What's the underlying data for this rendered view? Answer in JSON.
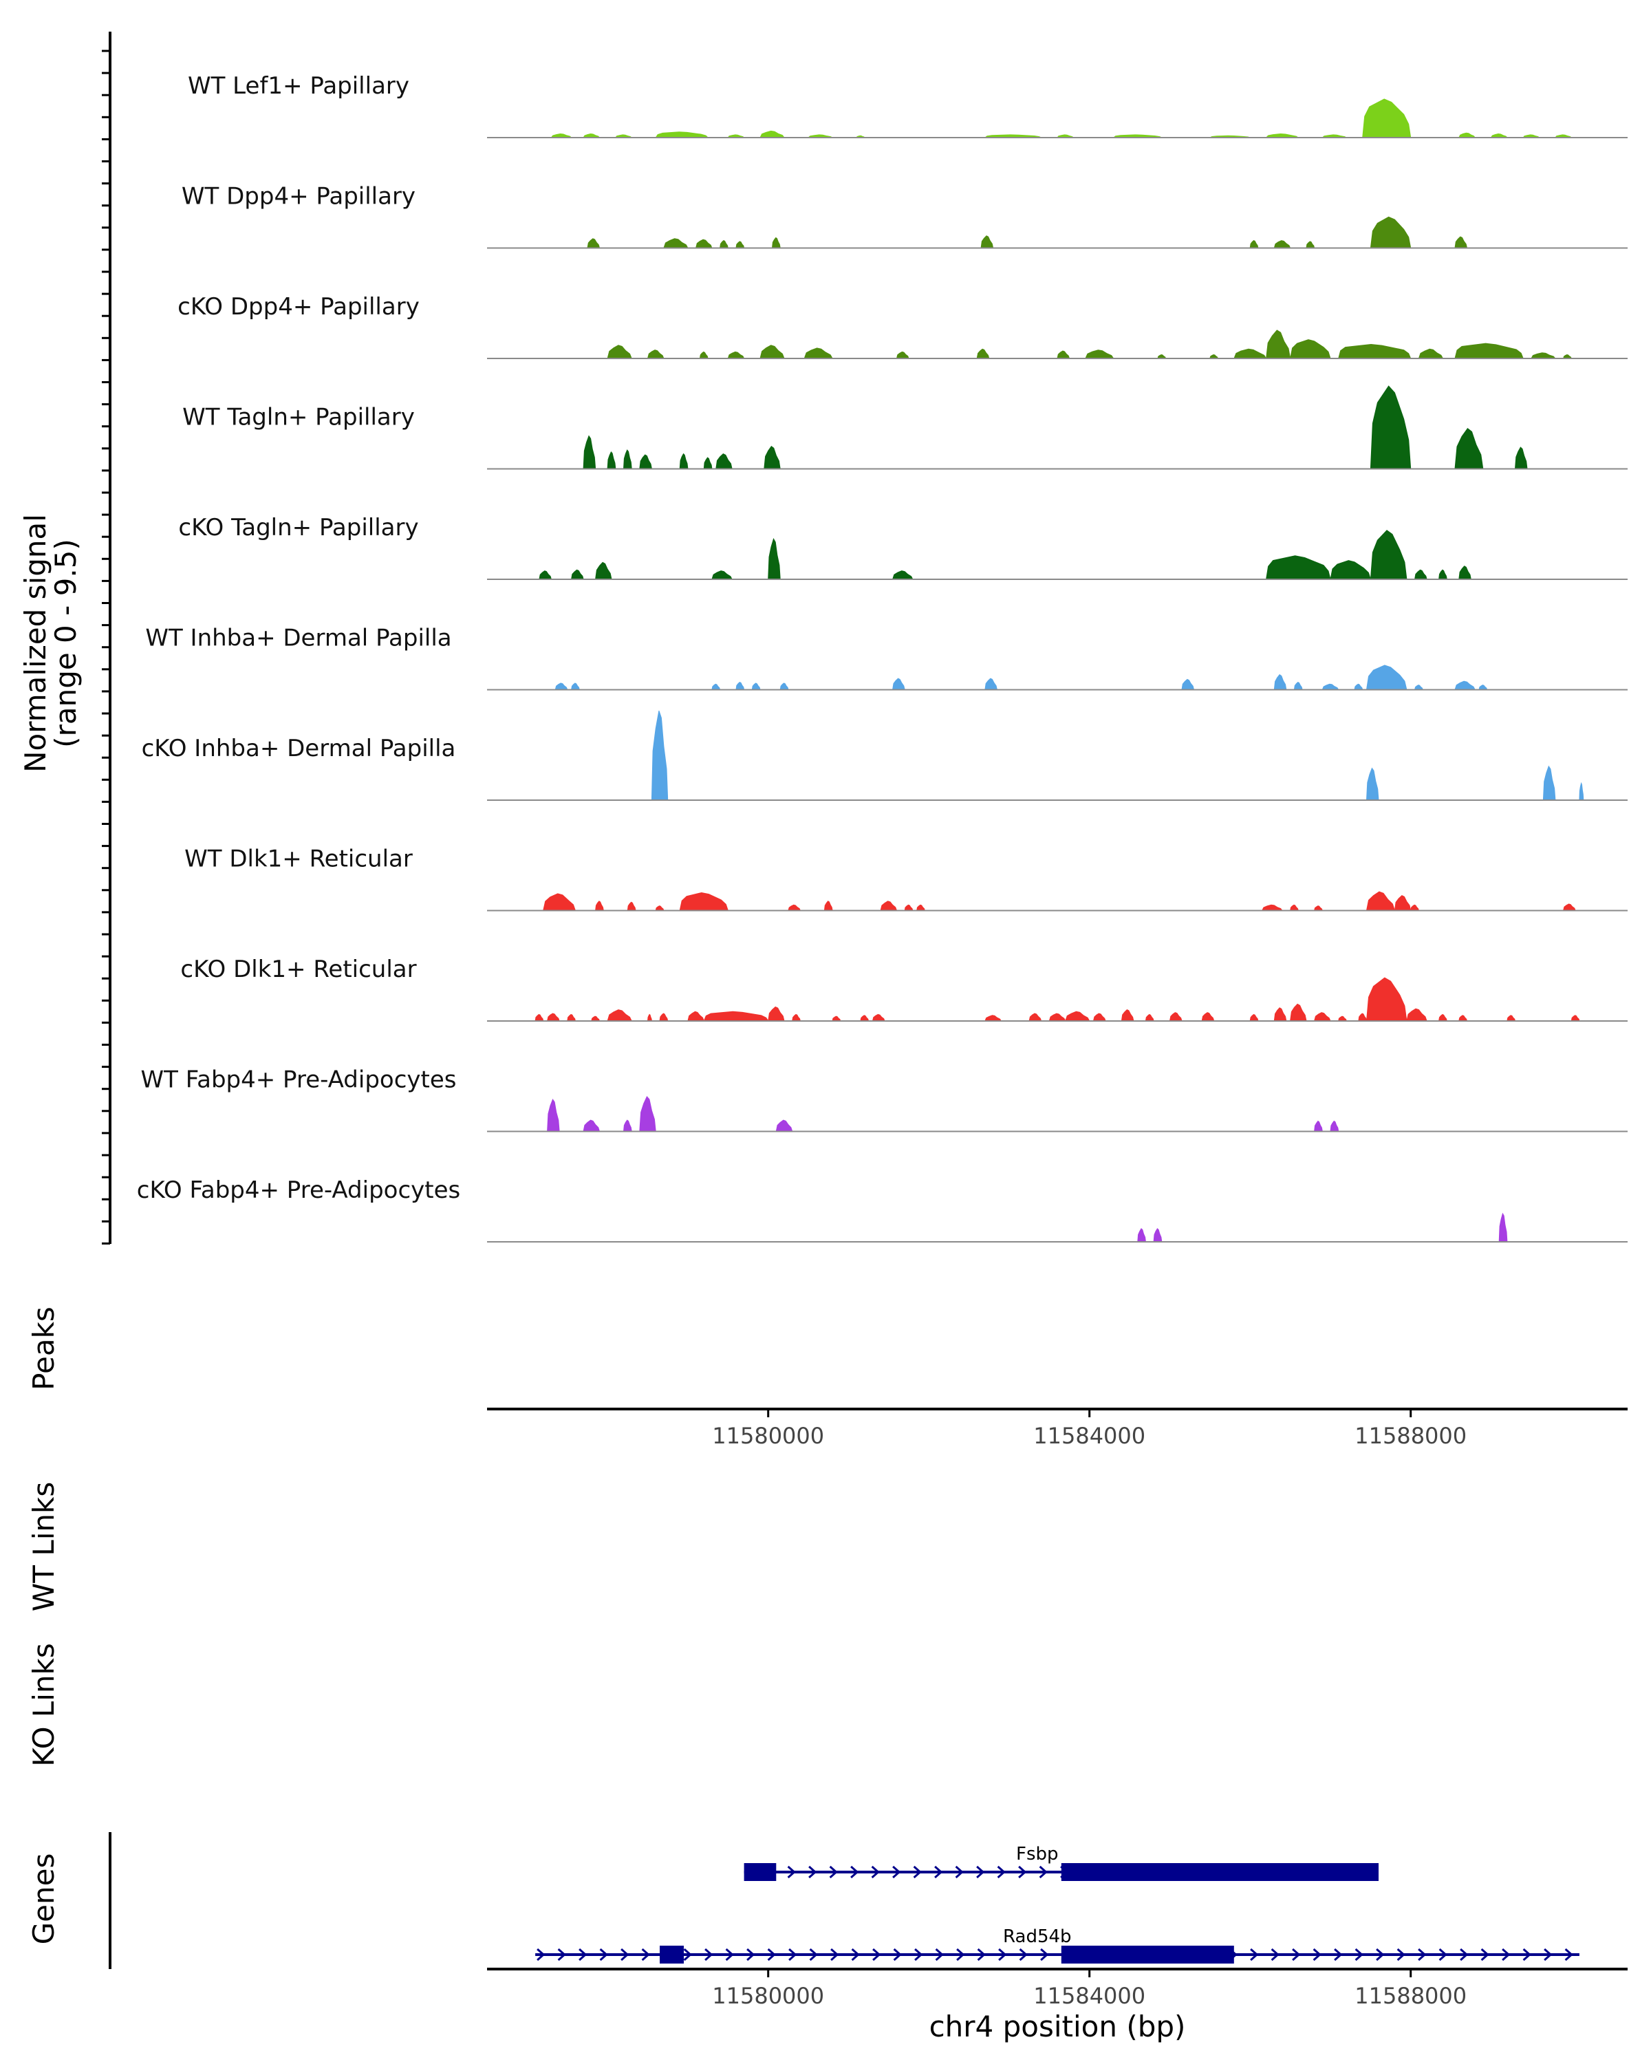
{
  "chart_data": {
    "type": "area",
    "title": "",
    "xlabel": "chr4 position (bp)",
    "ylabel_line1": "Normalized signal",
    "ylabel_line2": "(range 0 - 9.5)",
    "signal_range": [
      0,
      9.5
    ],
    "x_range": [
      11576500,
      11590700
    ],
    "x_ticks": [
      11580000,
      11584000,
      11588000
    ],
    "x_tick_labels": [
      "11580000",
      "11584000",
      "11588000"
    ],
    "panel_labels": {
      "peaks": "Peaks",
      "wt_links": "WT Links",
      "ko_links": "KO Links",
      "genes": "Genes"
    },
    "series": [
      {
        "name": "WT Lef1+ Papillary",
        "color": "#7CD11A",
        "regions": [
          [
            11577300,
            11577550,
            0.4
          ],
          [
            11577700,
            11577900,
            0.4
          ],
          [
            11578100,
            11578300,
            0.3
          ],
          [
            11578600,
            11579250,
            0.6
          ],
          [
            11579500,
            11579700,
            0.3
          ],
          [
            11579900,
            11580200,
            0.7
          ],
          [
            11580500,
            11580800,
            0.3
          ],
          [
            11581100,
            11581200,
            0.2
          ],
          [
            11582700,
            11583400,
            0.3
          ],
          [
            11583600,
            11583800,
            0.3
          ],
          [
            11584300,
            11584900,
            0.3
          ],
          [
            11585500,
            11586000,
            0.2
          ],
          [
            11586200,
            11586600,
            0.4
          ],
          [
            11586900,
            11587200,
            0.3
          ],
          [
            11587400,
            11588000,
            4.1
          ],
          [
            11588600,
            11588800,
            0.5
          ],
          [
            11589000,
            11589200,
            0.4
          ],
          [
            11589400,
            11589600,
            0.3
          ],
          [
            11589800,
            11590000,
            0.3
          ]
        ]
      },
      {
        "name": "WT Dpp4+ Papillary",
        "color": "#4E8B0E",
        "regions": [
          [
            11577750,
            11577900,
            1.0
          ],
          [
            11578700,
            11579000,
            1.0
          ],
          [
            11579100,
            11579300,
            0.9
          ],
          [
            11579400,
            11579500,
            0.8
          ],
          [
            11579600,
            11579700,
            0.7
          ],
          [
            11580050,
            11580150,
            1.1
          ],
          [
            11582650,
            11582800,
            1.3
          ],
          [
            11586000,
            11586100,
            0.8
          ],
          [
            11586300,
            11586500,
            0.8
          ],
          [
            11586700,
            11586800,
            0.7
          ],
          [
            11587500,
            11588000,
            3.3
          ],
          [
            11588550,
            11588700,
            1.2
          ]
        ]
      },
      {
        "name": "cKO Dpp4+ Papillary",
        "color": "#4E8B0E",
        "regions": [
          [
            11578000,
            11578300,
            1.4
          ],
          [
            11578500,
            11578700,
            0.9
          ],
          [
            11579150,
            11579250,
            0.7
          ],
          [
            11579500,
            11579700,
            0.7
          ],
          [
            11579900,
            11580200,
            1.4
          ],
          [
            11580450,
            11580800,
            1.1
          ],
          [
            11581600,
            11581750,
            0.7
          ],
          [
            11582600,
            11582750,
            1.0
          ],
          [
            11583600,
            11583750,
            0.8
          ],
          [
            11583950,
            11584300,
            0.9
          ],
          [
            11584850,
            11584950,
            0.4
          ],
          [
            11585500,
            11585600,
            0.4
          ],
          [
            11585800,
            11586200,
            1.0
          ],
          [
            11586200,
            11586500,
            3.0
          ],
          [
            11586500,
            11587000,
            2.0
          ],
          [
            11587100,
            11588000,
            1.5
          ],
          [
            11588100,
            11588400,
            1.0
          ],
          [
            11588550,
            11589400,
            1.6
          ],
          [
            11589500,
            11589800,
            0.6
          ],
          [
            11589900,
            11590000,
            0.4
          ]
        ]
      },
      {
        "name": "WT Tagln+ Papillary",
        "color": "#0A6410",
        "regions": [
          [
            11577700,
            11577850,
            3.5
          ],
          [
            11578000,
            11578100,
            1.8
          ],
          [
            11578200,
            11578300,
            2.0
          ],
          [
            11578400,
            11578550,
            1.5
          ],
          [
            11578900,
            11579000,
            1.6
          ],
          [
            11579200,
            11579300,
            1.2
          ],
          [
            11579350,
            11579550,
            1.6
          ],
          [
            11579950,
            11580150,
            2.4
          ],
          [
            11587500,
            11588000,
            8.8
          ],
          [
            11588550,
            11588900,
            4.3
          ],
          [
            11589300,
            11589450,
            2.3
          ]
        ]
      },
      {
        "name": "cKO Tagln+ Papillary",
        "color": "#0A6410",
        "regions": [
          [
            11577150,
            11577300,
            0.9
          ],
          [
            11577550,
            11577700,
            1.0
          ],
          [
            11577850,
            11578050,
            1.8
          ],
          [
            11579300,
            11579550,
            0.9
          ],
          [
            11580000,
            11580150,
            4.3
          ],
          [
            11581550,
            11581800,
            0.9
          ],
          [
            11586200,
            11587000,
            2.5
          ],
          [
            11587000,
            11587500,
            2.0
          ],
          [
            11587500,
            11587950,
            5.2
          ],
          [
            11588050,
            11588200,
            1.0
          ],
          [
            11588350,
            11588450,
            1.0
          ],
          [
            11588600,
            11588750,
            1.4
          ]
        ]
      },
      {
        "name": "WT Inhba+ Dermal Papilla",
        "color": "#56A5E6",
        "regions": [
          [
            11577350,
            11577500,
            0.7
          ],
          [
            11577550,
            11577650,
            0.7
          ],
          [
            11579300,
            11579400,
            0.6
          ],
          [
            11579600,
            11579700,
            0.8
          ],
          [
            11579800,
            11579900,
            0.7
          ],
          [
            11580150,
            11580250,
            0.7
          ],
          [
            11581550,
            11581700,
            1.2
          ],
          [
            11582700,
            11582850,
            1.2
          ],
          [
            11585150,
            11585300,
            1.1
          ],
          [
            11586300,
            11586450,
            1.6
          ],
          [
            11586550,
            11586650,
            0.8
          ],
          [
            11586900,
            11587100,
            0.6
          ],
          [
            11587300,
            11587400,
            0.6
          ],
          [
            11587450,
            11587950,
            2.6
          ],
          [
            11588050,
            11588150,
            0.5
          ],
          [
            11588550,
            11588800,
            0.9
          ],
          [
            11588850,
            11588950,
            0.5
          ]
        ]
      },
      {
        "name": "cKO Inhba+ Dermal Papilla",
        "color": "#56A5E6",
        "regions": [
          [
            11578550,
            11578750,
            9.5
          ],
          [
            11587450,
            11587600,
            3.4
          ],
          [
            11589650,
            11589800,
            3.6
          ],
          [
            11590100,
            11590150,
            1.8
          ]
        ]
      },
      {
        "name": "WT Dlk1+ Reticular",
        "color": "#F0302C",
        "regions": [
          [
            11577200,
            11577600,
            1.8
          ],
          [
            11577850,
            11577950,
            1.0
          ],
          [
            11578250,
            11578350,
            0.9
          ],
          [
            11578600,
            11578700,
            0.5
          ],
          [
            11578900,
            11579500,
            1.9
          ],
          [
            11580250,
            11580400,
            0.6
          ],
          [
            11580700,
            11580800,
            1.0
          ],
          [
            11581400,
            11581600,
            1.0
          ],
          [
            11581700,
            11581800,
            0.6
          ],
          [
            11581850,
            11581950,
            0.6
          ],
          [
            11586150,
            11586400,
            0.6
          ],
          [
            11586500,
            11586600,
            0.6
          ],
          [
            11586800,
            11586900,
            0.5
          ],
          [
            11587450,
            11587800,
            2.0
          ],
          [
            11587800,
            11588000,
            1.6
          ],
          [
            11588000,
            11588100,
            0.6
          ],
          [
            11589900,
            11590050,
            0.7
          ]
        ]
      },
      {
        "name": "cKO Dlk1+ Reticular",
        "color": "#F0302C",
        "regions": [
          [
            11577100,
            11577200,
            0.7
          ],
          [
            11577250,
            11577400,
            0.8
          ],
          [
            11577500,
            11577600,
            0.7
          ],
          [
            11577800,
            11577900,
            0.5
          ],
          [
            11578000,
            11578300,
            1.2
          ],
          [
            11578500,
            11578550,
            0.7
          ],
          [
            11578650,
            11578750,
            0.8
          ],
          [
            11579000,
            11579200,
            1.0
          ],
          [
            11579200,
            11580000,
            1.0
          ],
          [
            11580000,
            11580200,
            1.5
          ],
          [
            11580300,
            11580400,
            0.7
          ],
          [
            11580800,
            11580900,
            0.5
          ],
          [
            11581150,
            11581250,
            0.6
          ],
          [
            11581300,
            11581450,
            0.7
          ],
          [
            11582700,
            11582900,
            0.6
          ],
          [
            11583250,
            11583400,
            0.8
          ],
          [
            11583500,
            11583700,
            0.8
          ],
          [
            11583700,
            11584000,
            1.0
          ],
          [
            11584050,
            11584200,
            0.8
          ],
          [
            11584400,
            11584550,
            1.2
          ],
          [
            11584700,
            11584800,
            0.7
          ],
          [
            11585000,
            11585150,
            0.9
          ],
          [
            11585400,
            11585550,
            0.9
          ],
          [
            11586000,
            11586100,
            0.7
          ],
          [
            11586300,
            11586450,
            1.4
          ],
          [
            11586500,
            11586700,
            1.8
          ],
          [
            11586800,
            11587000,
            0.9
          ],
          [
            11587100,
            11587200,
            0.5
          ],
          [
            11587350,
            11587450,
            0.8
          ],
          [
            11587450,
            11587950,
            4.6
          ],
          [
            11587950,
            11588200,
            1.3
          ],
          [
            11588350,
            11588450,
            0.7
          ],
          [
            11588600,
            11588700,
            0.6
          ],
          [
            11589200,
            11589300,
            0.6
          ],
          [
            11590000,
            11590100,
            0.6
          ]
        ]
      },
      {
        "name": "WT Fabp4+ Pre-Adipocytes",
        "color": "#A73EE2",
        "regions": [
          [
            11577250,
            11577400,
            3.4
          ],
          [
            11577700,
            11577900,
            1.2
          ],
          [
            11578200,
            11578300,
            1.2
          ],
          [
            11578400,
            11578600,
            3.7
          ],
          [
            11580100,
            11580300,
            1.2
          ],
          [
            11586800,
            11586900,
            1.1
          ],
          [
            11587000,
            11587100,
            1.1
          ]
        ]
      },
      {
        "name": "cKO Fabp4+ Pre-Adipocytes",
        "color": "#A73EE2",
        "regions": [
          [
            11584600,
            11584700,
            1.4
          ],
          [
            11584800,
            11584900,
            1.4
          ],
          [
            11589100,
            11589200,
            3.0
          ]
        ]
      }
    ],
    "genes": [
      {
        "name": "Fsbp",
        "start": 11579700,
        "end": 11587600,
        "strand": "+",
        "exons": [
          [
            11579700,
            11580100
          ],
          [
            11583650,
            11587600
          ]
        ]
      },
      {
        "name": "Rad54b",
        "start": 11577100,
        "end": 11590100,
        "strand": "+",
        "exons": [
          [
            11578650,
            11578950
          ],
          [
            11583650,
            11585800
          ]
        ]
      }
    ]
  }
}
